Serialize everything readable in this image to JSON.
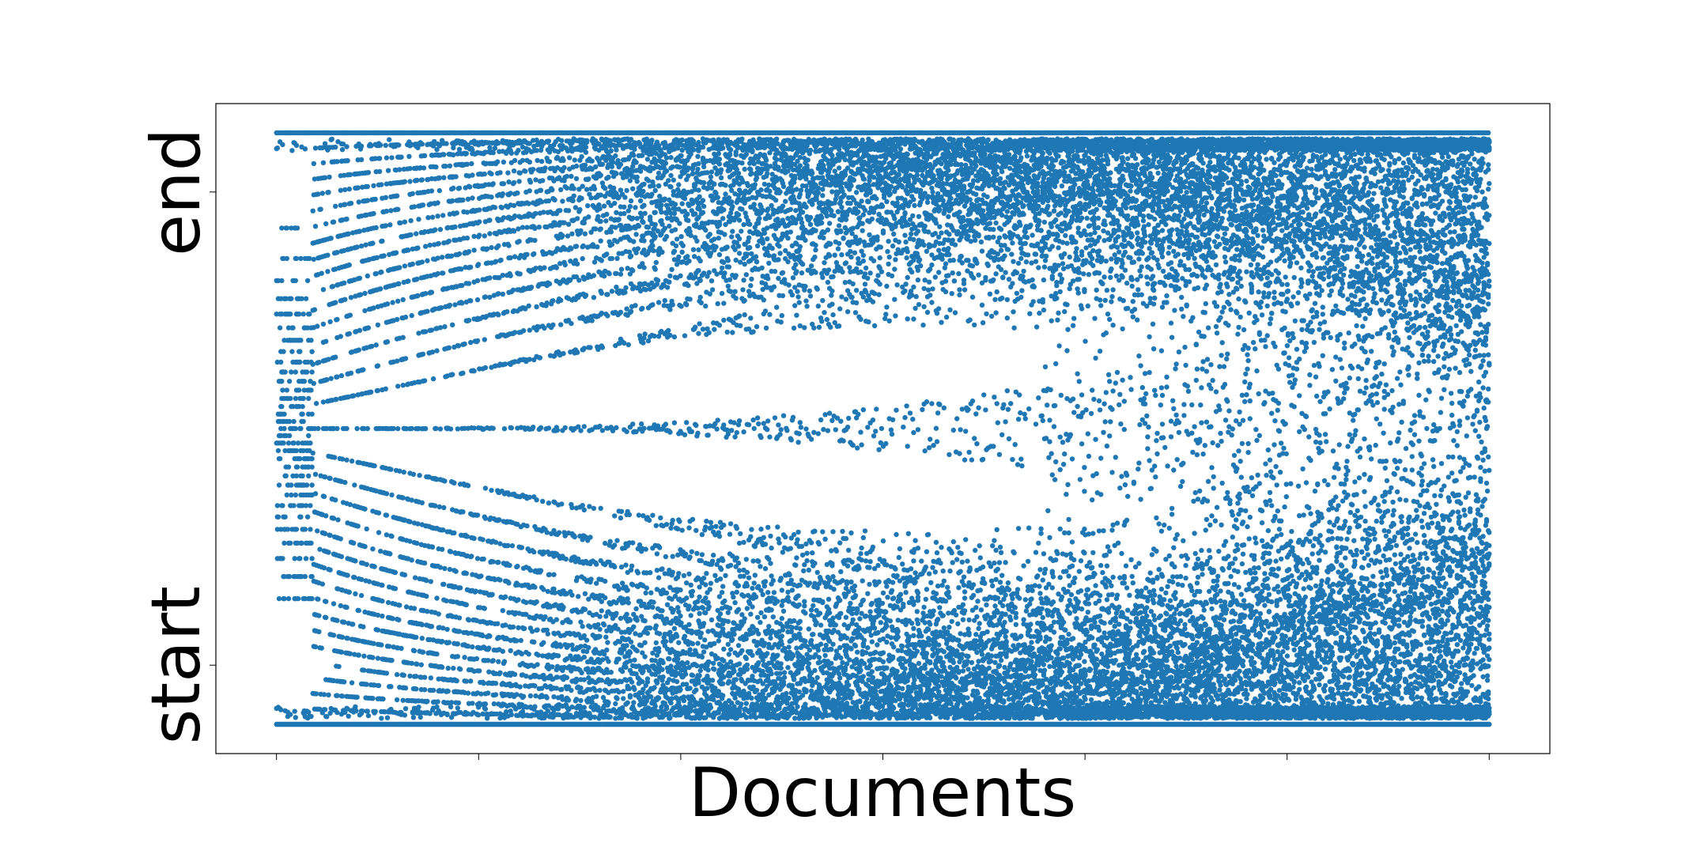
{
  "chart_data": {
    "type": "scatter",
    "title": "",
    "xlabel": "Documents",
    "ylabel": "",
    "y_tick_labels": [
      "start",
      "end"
    ],
    "y_tick_values": [
      0.1,
      0.9
    ],
    "ylim": [
      0,
      1
    ],
    "x_tick_count": 7,
    "grid": false,
    "legend": "none",
    "marker_color": "#1f77b4",
    "series": [
      {
        "point_groups": [
          {
            "x_range": [
              0,
              100
            ],
            "y_levels": [
              0.0,
              0.5,
              1.0
            ],
            "pattern": "lines at start and end converging"
          },
          {
            "x_range": [
              0,
              100
            ],
            "y_range": [
              0,
              1
            ],
            "pattern": "dense banded arcs, bands become dispersed toward high x"
          }
        ]
      }
    ],
    "xlim": [
      -5,
      105
    ]
  }
}
